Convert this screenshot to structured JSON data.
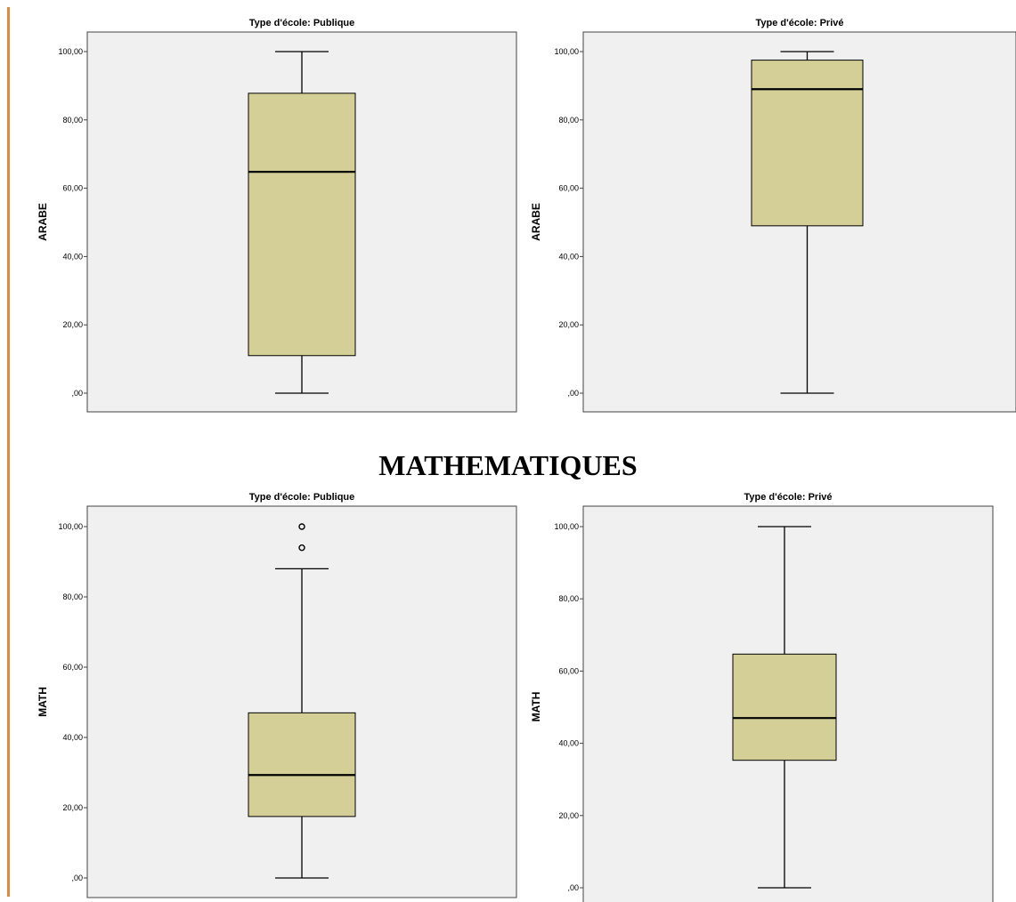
{
  "section_heading": "MATHEMATIQUES",
  "colors": {
    "box_fill": "#d4cf96",
    "plot_bg": "#f0f0f0",
    "accent_bar": "#e0893a"
  },
  "chart_data": [
    {
      "type": "boxplot",
      "title": "Type d'école: Publique",
      "ylabel": "ARABE",
      "ylim": [
        0,
        100
      ],
      "yticks": [
        0,
        20,
        40,
        60,
        80,
        100
      ],
      "ytick_labels": [
        ",00",
        "20,00",
        "40,00",
        "60,00",
        "80,00",
        "100,00"
      ],
      "min": 0,
      "q1": 11,
      "median": 64.8,
      "q3": 87.8,
      "max": 100,
      "outliers": []
    },
    {
      "type": "boxplot",
      "title": "Type d'école: Privé",
      "ylabel": "ARABE",
      "ylim": [
        0,
        100
      ],
      "yticks": [
        0,
        20,
        40,
        60,
        80,
        100
      ],
      "ytick_labels": [
        ",00",
        "20,00",
        "40,00",
        "60,00",
        "80,00",
        "100,00"
      ],
      "min": 0,
      "q1": 49,
      "median": 89,
      "q3": 97.5,
      "max": 100,
      "outliers": []
    },
    {
      "type": "boxplot",
      "title": "Type d'école: Publique",
      "ylabel": "MATH",
      "ylim": [
        0,
        100
      ],
      "yticks": [
        0,
        20,
        40,
        60,
        80,
        100
      ],
      "ytick_labels": [
        ",00",
        "20,00",
        "40,00",
        "60,00",
        "80,00",
        "100,00"
      ],
      "min": 0,
      "q1": 17.5,
      "median": 29.3,
      "q3": 47,
      "max": 88,
      "outliers": [
        100,
        94
      ]
    },
    {
      "type": "boxplot",
      "title": "Type d'école: Privé",
      "ylabel": "MATH",
      "ylim": [
        0,
        100
      ],
      "yticks": [
        0,
        20,
        40,
        60,
        80,
        100
      ],
      "ytick_labels": [
        ",00",
        "20,00",
        "40,00",
        "60,00",
        "80,00",
        "100,00"
      ],
      "min": 0,
      "q1": 35.3,
      "median": 47,
      "q3": 64.7,
      "max": 100,
      "outliers": []
    }
  ]
}
